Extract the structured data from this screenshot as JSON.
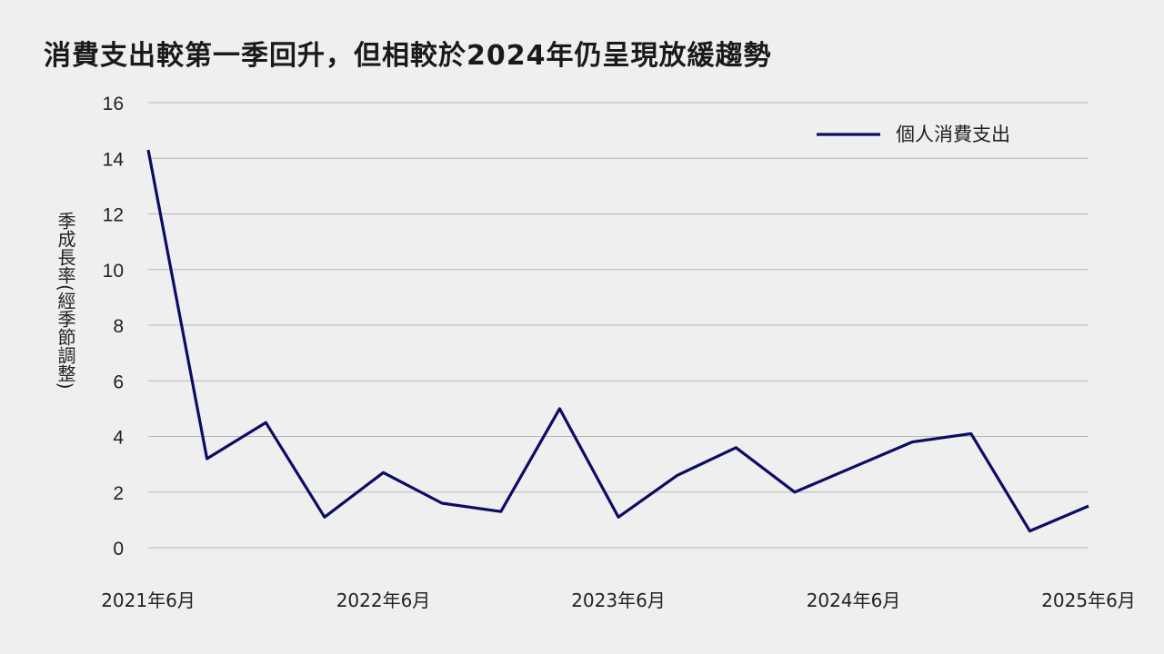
{
  "title": "消費支出較第一季回升，但相較於2024年仍呈現放緩趨勢",
  "colors": {
    "line": "#0c0c63",
    "grid": "#b5b5b5",
    "background": "#efefef"
  },
  "chart_data": {
    "type": "line",
    "ylabel": "季成長率(經季節調整)",
    "ylim": [
      0,
      16
    ],
    "yticks": [
      0,
      2,
      4,
      6,
      8,
      10,
      12,
      14,
      16
    ],
    "grid": true,
    "legend_position": "top-right",
    "x": [
      "2021Q2",
      "2021Q3",
      "2021Q4",
      "2022Q1",
      "2022Q2",
      "2022Q3",
      "2022Q4",
      "2023Q1",
      "2023Q2",
      "2023Q3",
      "2023Q4",
      "2024Q1",
      "2024Q2",
      "2024Q3",
      "2024Q4",
      "2025Q1",
      "2025Q2"
    ],
    "x_tick_labels": [
      {
        "at": "2021Q2",
        "label": "2021年6月"
      },
      {
        "at": "2022Q2",
        "label": "2022年6月"
      },
      {
        "at": "2023Q2",
        "label": "2023年6月"
      },
      {
        "at": "2024Q2",
        "label": "2024年6月"
      },
      {
        "at": "2025Q2",
        "label": "2025年6月"
      }
    ],
    "series": [
      {
        "name": "個人消費支出",
        "values": [
          14.3,
          3.2,
          4.5,
          1.1,
          2.7,
          1.6,
          1.3,
          5.0,
          1.1,
          2.6,
          3.6,
          2.0,
          2.9,
          3.8,
          4.1,
          0.6,
          1.5
        ]
      }
    ]
  }
}
